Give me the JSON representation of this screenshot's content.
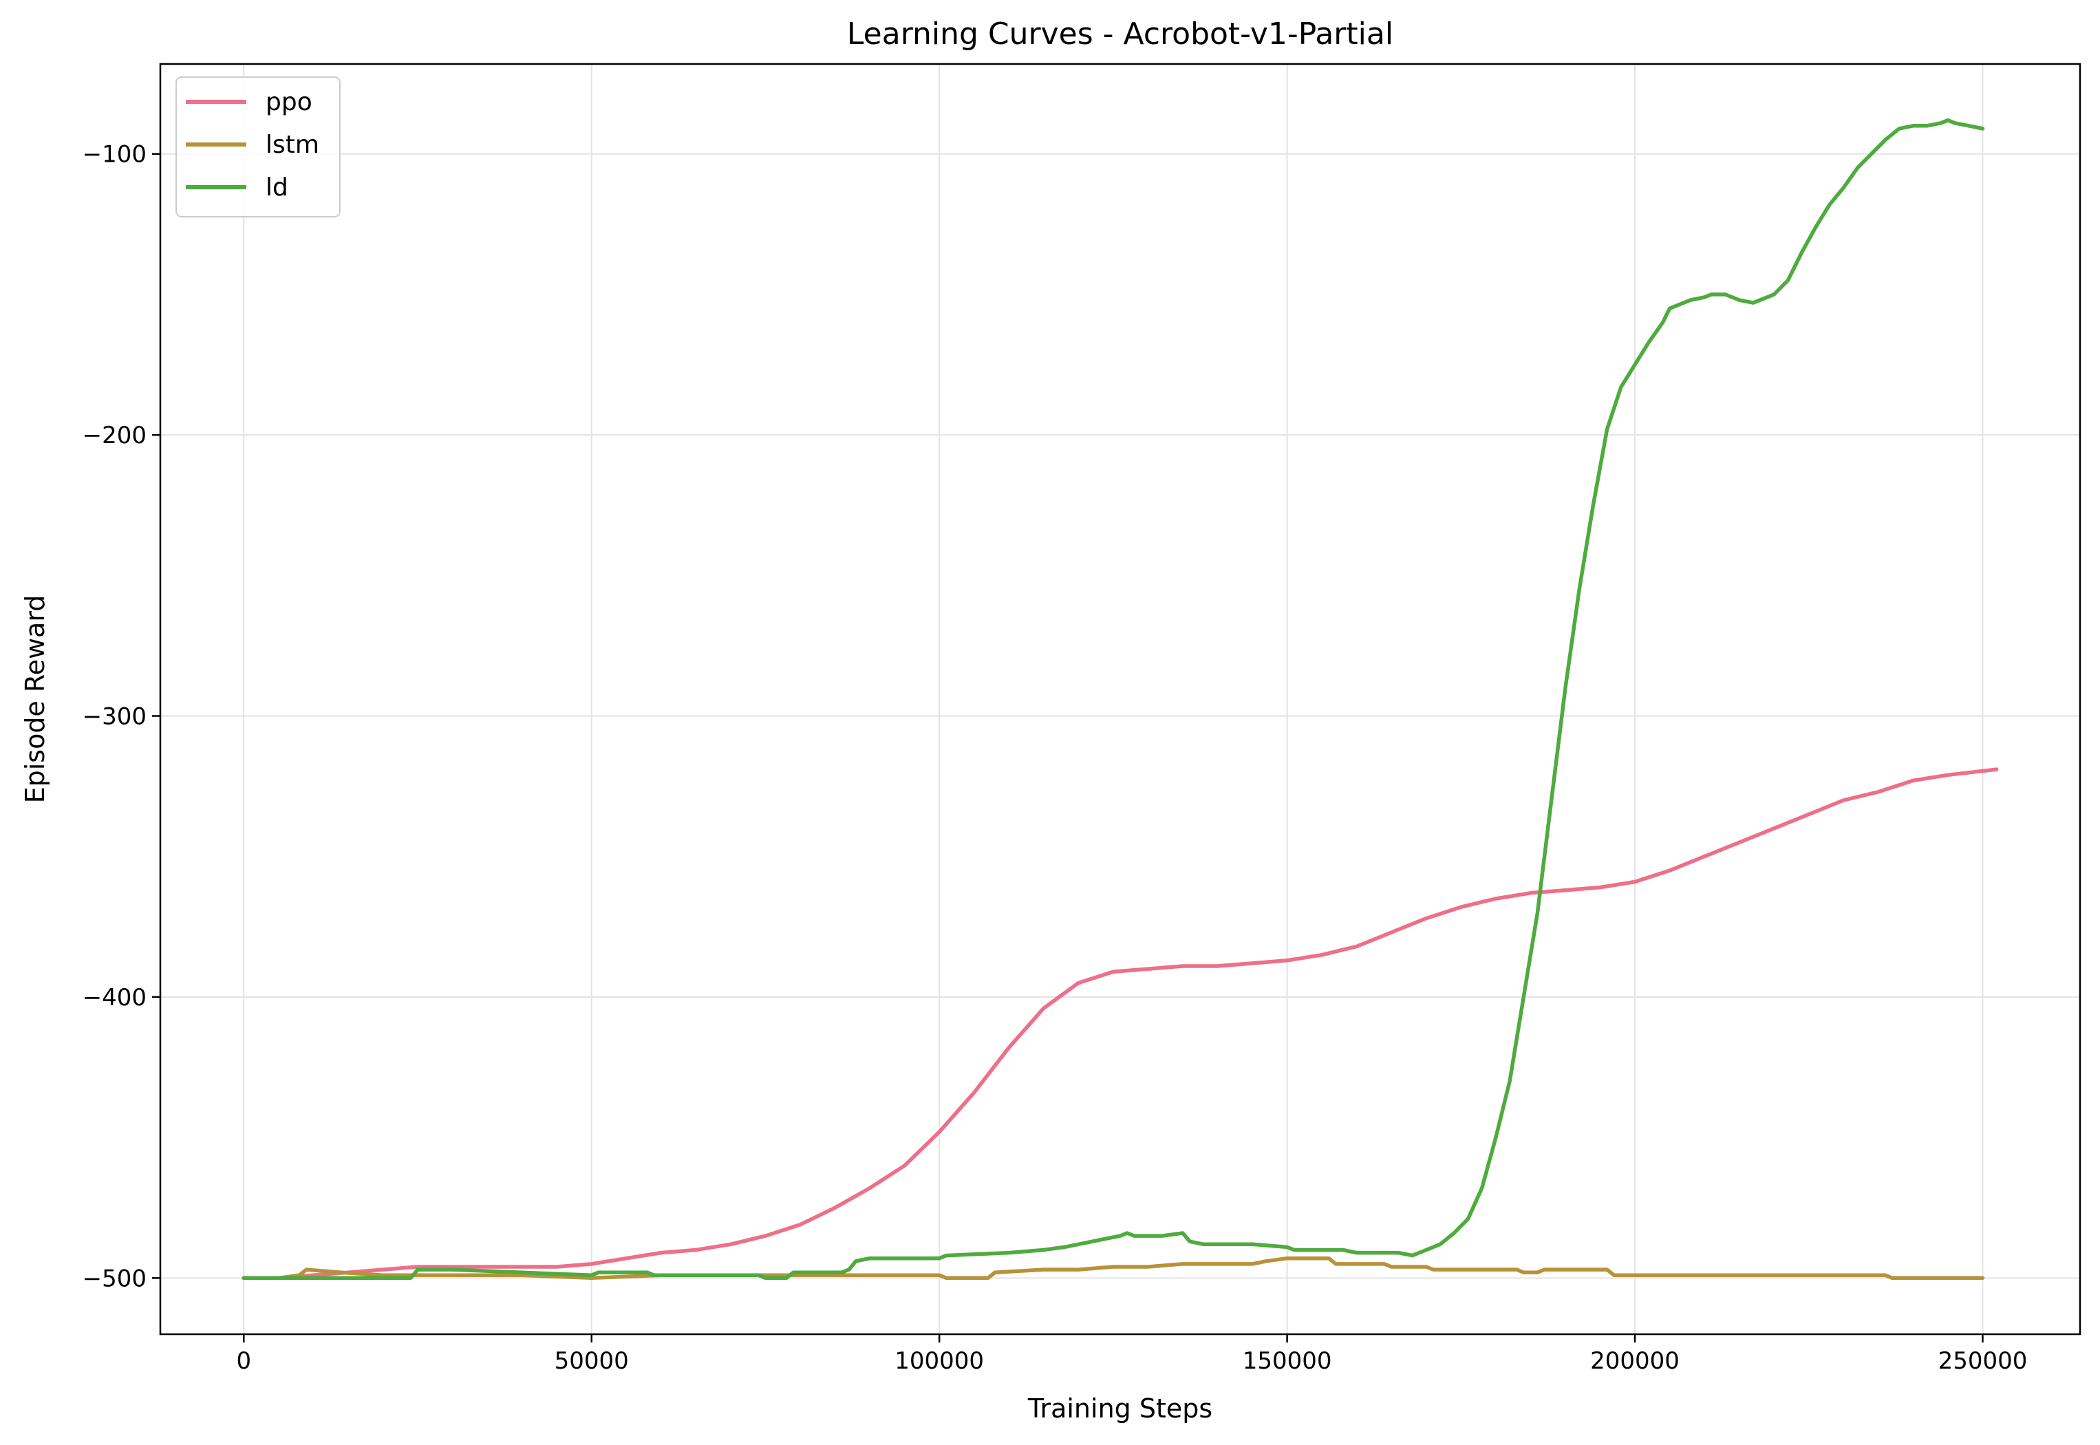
{
  "chart_data": {
    "type": "line",
    "title": "Learning Curves - Acrobot-v1-Partial",
    "xlabel": "Training Steps",
    "ylabel": "Episode Reward",
    "xlim": [
      -12000,
      264000
    ],
    "ylim": [
      -520,
      -68
    ],
    "xticks": [
      0,
      50000,
      100000,
      150000,
      200000,
      250000
    ],
    "xtick_labels": [
      "0",
      "50000",
      "100000",
      "150000",
      "200000",
      "250000"
    ],
    "yticks": [
      -500,
      -400,
      -300,
      -200,
      -100
    ],
    "ytick_labels": [
      "−500",
      "−400",
      "−300",
      "−200",
      "−100"
    ],
    "grid": true,
    "legend_position": "top-left",
    "series": [
      {
        "name": "ppo",
        "color": "#ee6f87",
        "x": [
          0,
          5000,
          10000,
          15000,
          20000,
          25000,
          30000,
          40000,
          45000,
          50000,
          55000,
          60000,
          65000,
          70000,
          75000,
          80000,
          85000,
          90000,
          95000,
          100000,
          105000,
          110000,
          115000,
          120000,
          125000,
          130000,
          135000,
          140000,
          145000,
          150000,
          155000,
          160000,
          165000,
          170000,
          175000,
          180000,
          185000,
          190000,
          195000,
          200000,
          205000,
          210000,
          215000,
          220000,
          225000,
          230000,
          235000,
          240000,
          245000,
          252000
        ],
        "values": [
          -500,
          -500,
          -499,
          -498,
          -497,
          -496,
          -496,
          -496,
          -496,
          -495,
          -493,
          -491,
          -490,
          -488,
          -485,
          -481,
          -475,
          -468,
          -460,
          -448,
          -434,
          -418,
          -404,
          -395,
          -391,
          -390,
          -389,
          -389,
          -388,
          -387,
          -385,
          -382,
          -377,
          -372,
          -368,
          -365,
          -363,
          -362,
          -361,
          -359,
          -355,
          -350,
          -345,
          -340,
          -335,
          -330,
          -327,
          -323,
          -321,
          -319
        ]
      },
      {
        "name": "lstm",
        "color": "#b8923a",
        "x": [
          0,
          5000,
          8000,
          9000,
          14000,
          20000,
          30000,
          40000,
          50000,
          60000,
          70000,
          80000,
          90000,
          100000,
          101000,
          107000,
          108000,
          115000,
          120000,
          125000,
          130000,
          135000,
          140000,
          145000,
          147000,
          150000,
          156000,
          157000,
          164000,
          165000,
          170000,
          171000,
          183000,
          184000,
          186000,
          187000,
          196000,
          197000,
          236000,
          237000,
          250000
        ],
        "values": [
          -500,
          -500,
          -499,
          -497,
          -498,
          -499,
          -499,
          -499,
          -500,
          -499,
          -499,
          -499,
          -499,
          -499,
          -500,
          -500,
          -498,
          -497,
          -497,
          -496,
          -496,
          -495,
          -495,
          -495,
          -494,
          -493,
          -493,
          -495,
          -495,
          -496,
          -496,
          -497,
          -497,
          -498,
          -498,
          -497,
          -497,
          -499,
          -499,
          -500,
          -500
        ]
      },
      {
        "name": "ld",
        "color": "#4eab3d",
        "x": [
          0,
          24000,
          25000,
          30000,
          40000,
          50000,
          51000,
          58000,
          59000,
          74000,
          75000,
          78000,
          79000,
          86000,
          87000,
          88000,
          90000,
          100000,
          101000,
          110000,
          115000,
          118000,
          120000,
          122000,
          124000,
          126000,
          127000,
          128000,
          130000,
          132000,
          135000,
          136000,
          138000,
          145000,
          150000,
          151000,
          158000,
          160000,
          163000,
          166000,
          168000,
          170000,
          172000,
          174000,
          176000,
          178000,
          180000,
          182000,
          184000,
          186000,
          188000,
          190000,
          192000,
          194000,
          196000,
          198000,
          200000,
          202000,
          204000,
          205000,
          206000,
          208000,
          210000,
          211000,
          213000,
          215000,
          217000,
          220000,
          222000,
          224000,
          226000,
          228000,
          230000,
          232000,
          234000,
          236000,
          238000,
          240000,
          242000,
          244000,
          245000,
          246000,
          248000,
          250000
        ],
        "values": [
          -500,
          -500,
          -497,
          -497,
          -498,
          -499,
          -498,
          -498,
          -499,
          -499,
          -500,
          -500,
          -498,
          -498,
          -497,
          -494,
          -493,
          -493,
          -492,
          -491,
          -490,
          -489,
          -488,
          -487,
          -486,
          -485,
          -484,
          -485,
          -485,
          -485,
          -484,
          -487,
          -488,
          -488,
          -489,
          -490,
          -490,
          -491,
          -491,
          -491,
          -492,
          -490,
          -488,
          -484,
          -479,
          -468,
          -450,
          -430,
          -400,
          -370,
          -330,
          -290,
          -255,
          -225,
          -198,
          -183,
          -175,
          -167,
          -160,
          -155,
          -154,
          -152,
          -151,
          -150,
          -150,
          -152,
          -153,
          -150,
          -145,
          -135,
          -126,
          -118,
          -112,
          -105,
          -100,
          -95,
          -91,
          -90,
          -90,
          -89,
          -88,
          -89,
          -90,
          -91
        ]
      }
    ]
  }
}
